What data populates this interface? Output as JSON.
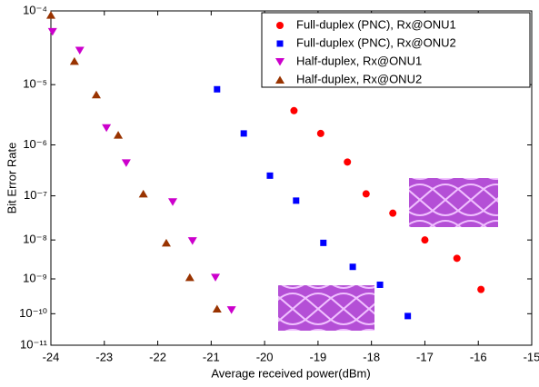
{
  "chart_data": {
    "type": "scatter",
    "x_label": "Average received power(dBm)",
    "y_label": "Bit Error Rate",
    "yscale": "log-log",
    "xlim": [
      -24,
      -15
    ],
    "xticks": [
      -24,
      -23,
      -22,
      -21,
      -20,
      -19,
      -18,
      -17,
      -16,
      -15
    ],
    "ylim": [
      1e-11,
      0.0001
    ],
    "yticks": [
      {
        "value": 1e-11,
        "label": "10⁻¹¹"
      },
      {
        "value": 1e-10,
        "label": "10⁻¹⁰"
      },
      {
        "value": 1e-09,
        "label": "10⁻⁹"
      },
      {
        "value": 1e-08,
        "label": "10⁻⁸"
      },
      {
        "value": 1e-07,
        "label": "10⁻⁷"
      },
      {
        "value": 1e-06,
        "label": "10⁻⁶"
      },
      {
        "value": 1e-05,
        "label": "10⁻⁵"
      },
      {
        "value": 0.0001,
        "label": "10⁻⁴"
      }
    ],
    "legend": "top-right",
    "series": [
      {
        "name": "Full-duplex (PNC), Rx@ONU1",
        "color": "#ff0000",
        "marker": "circle",
        "x": [
          -19.45,
          -18.95,
          -18.45,
          -18.1,
          -17.6,
          -17,
          -16.4,
          -15.95
        ],
        "values": [
          3.9e-06,
          1.6e-06,
          4.8e-07,
          1.1e-07,
          4.2e-08,
          1e-08,
          3.5e-09,
          5.1e-10
        ]
      },
      {
        "name": "Full-duplex (PNC), Rx@ONU2",
        "color": "#0000ff",
        "marker": "square",
        "x": [
          -20.89,
          -20.39,
          -19.9,
          -19.41,
          -18.9,
          -18.35,
          -17.84,
          -17.32
        ],
        "values": [
          8.5e-06,
          1.6e-06,
          2.6e-07,
          7.9e-08,
          8.5e-09,
          2.1e-09,
          6.9e-10,
          8.5e-11
        ]
      },
      {
        "name": "Half-duplex, Rx@ONU1",
        "color": "#cc00cc",
        "marker": "triangle-down",
        "x": [
          -23.97,
          -23.46,
          -22.96,
          -22.59,
          -21.72,
          -21.35,
          -20.92,
          -20.62
        ],
        "values": [
          5.5e-05,
          3.1e-05,
          2e-06,
          4.6e-07,
          7.4e-08,
          9.5e-09,
          1.1e-09,
          1.3e-10
        ]
      },
      {
        "name": "Half-duplex, Rx@ONU2",
        "color": "#993300",
        "marker": "triangle-up",
        "x": [
          -24,
          -23.56,
          -23.15,
          -22.74,
          -22.27,
          -21.84,
          -21.4,
          -20.89
        ],
        "values": [
          8.9e-05,
          2.2e-05,
          7e-06,
          1.5e-06,
          1.1e-07,
          8.5e-09,
          1.1e-09,
          1.4e-10
        ]
      }
    ]
  }
}
